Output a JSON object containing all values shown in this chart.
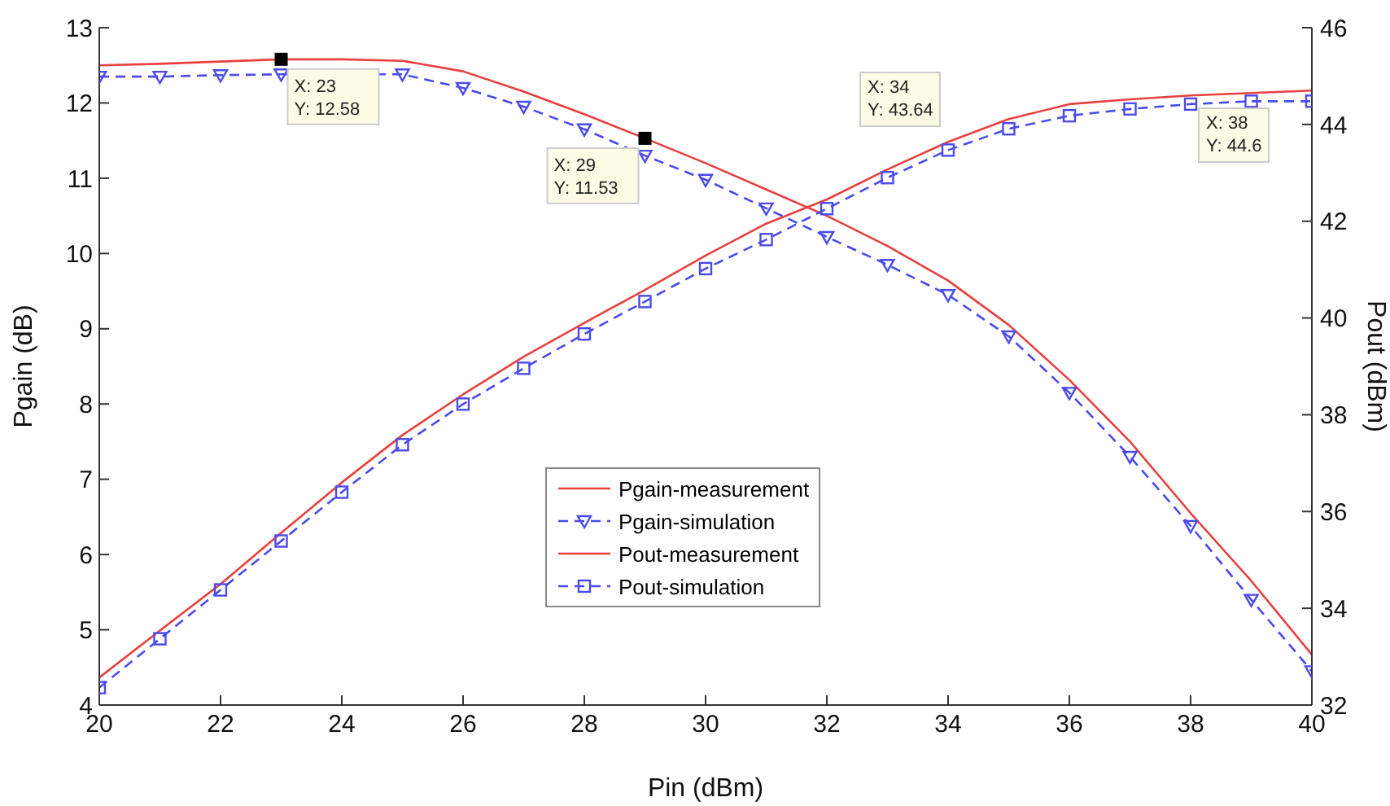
{
  "chart_data": {
    "type": "line",
    "xlabel": "Pin (dBm)",
    "ylabel": "Pgain (dB)",
    "y2label": "Pout (dBm)",
    "x": [
      20,
      21,
      22,
      23,
      24,
      25,
      26,
      27,
      28,
      29,
      30,
      31,
      32,
      33,
      34,
      35,
      36,
      37,
      38,
      39,
      40
    ],
    "xlim": [
      20,
      40
    ],
    "xticks": [
      20,
      22,
      24,
      26,
      28,
      30,
      32,
      34,
      36,
      38,
      40
    ],
    "ylim": [
      4,
      13
    ],
    "yticks": [
      4,
      5,
      6,
      7,
      8,
      9,
      10,
      11,
      12,
      13
    ],
    "y2lim": [
      32,
      46
    ],
    "y2ticks": [
      32,
      34,
      36,
      38,
      40,
      42,
      44,
      46
    ],
    "legend": "center",
    "series": [
      {
        "name": "Pgain-measurement",
        "color": "#e8403f",
        "marker": "none",
        "line_style": "solid",
        "values": [
          12.5,
          12.52,
          12.55,
          12.58,
          12.58,
          12.56,
          12.42,
          12.15,
          11.85,
          11.53,
          11.2,
          10.85,
          10.5,
          10.1,
          9.64,
          9.05,
          8.32,
          7.5,
          6.55,
          5.65,
          4.67
        ]
      },
      {
        "name": "Pgain-simulation",
        "color": "#4a4aee",
        "marker": "triangle",
        "line_style": "dashed",
        "values": [
          12.35,
          12.35,
          12.37,
          12.38,
          null,
          12.38,
          12.2,
          11.95,
          11.65,
          11.3,
          10.98,
          10.6,
          10.22,
          9.85,
          9.45,
          8.9,
          8.15,
          7.3,
          6.38,
          5.4,
          4.45
        ]
      },
      {
        "name": "Pout-measurement",
        "color": "#e8403f",
        "marker": "none",
        "line_style": "solid",
        "axis": "y2",
        "values": [
          32.57,
          33.54,
          34.5,
          35.56,
          36.6,
          37.58,
          38.42,
          39.2,
          39.9,
          40.58,
          41.29,
          41.95,
          42.45,
          43.07,
          43.64,
          44.11,
          44.42,
          44.52,
          44.6,
          44.65,
          44.7
        ]
      },
      {
        "name": "Pout-simulation",
        "color": "#4a4aee",
        "marker": "square",
        "line_style": "dashed",
        "axis": "y2",
        "values": [
          32.36,
          33.37,
          34.38,
          35.39,
          36.4,
          37.38,
          38.22,
          38.96,
          39.67,
          40.34,
          41.02,
          41.62,
          42.26,
          42.9,
          43.47,
          43.91,
          44.18,
          44.32,
          44.42,
          44.48,
          44.48
        ]
      }
    ],
    "annotations": [
      {
        "text": "X: 23\nY: 12.58",
        "x": 23,
        "y": 12.58
      },
      {
        "text": "X: 29\nY: 11.53",
        "x": 29,
        "y": 11.53
      },
      "X: 34\nY: 43.64",
      "X: 38\nY: 44.6"
    ]
  }
}
